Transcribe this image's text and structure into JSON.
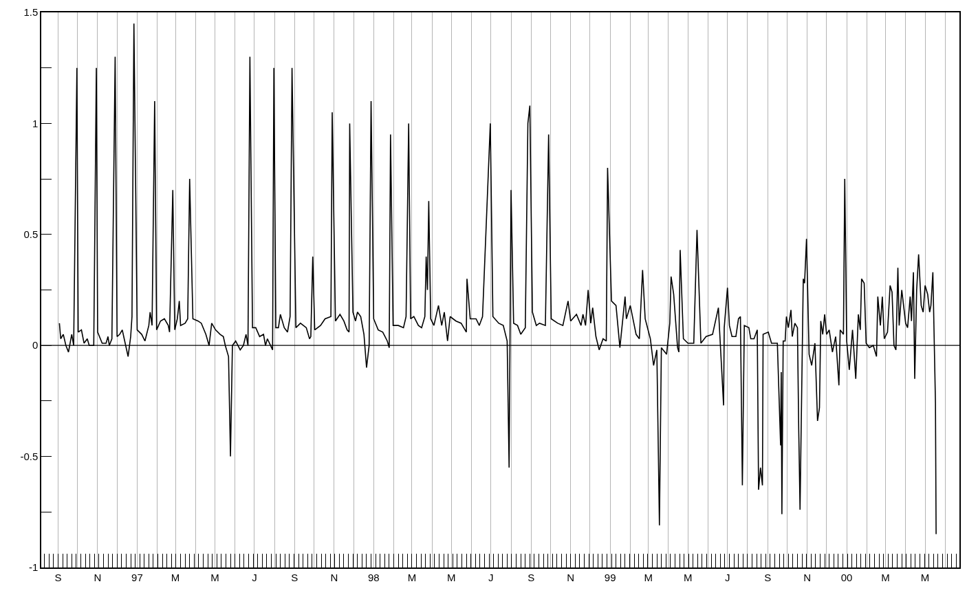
{
  "chart_data": {
    "type": "line",
    "x": [
      "1996-09-03",
      "1996-09-05",
      "1996-09-09",
      "1996-09-13",
      "1996-09-17",
      "1996-09-22",
      "1996-09-25",
      "1996-09-30",
      "1996-10-02",
      "1996-10-07",
      "1996-10-11",
      "1996-10-16",
      "1996-10-19",
      "1996-10-26",
      "1996-10-30",
      "1996-11-01",
      "1996-11-08",
      "1996-11-14",
      "1996-11-17",
      "1996-11-19",
      "1996-11-23",
      "1996-11-28",
      "1996-12-01",
      "1996-12-05",
      "1996-12-09",
      "1996-12-12",
      "1996-12-18",
      "1996-12-22",
      "1996-12-24",
      "1996-12-27",
      "1997-01-01",
      "1997-01-08",
      "1997-01-13",
      "1997-01-19",
      "1997-01-21",
      "1997-01-24",
      "1997-01-28",
      "1997-01-31",
      "1997-02-06",
      "1997-02-12",
      "1997-02-18",
      "1997-02-20",
      "1997-02-25",
      "1997-02-28",
      "1997-03-04",
      "1997-03-07",
      "1997-03-09",
      "1997-03-16",
      "1997-03-20",
      "1997-03-23",
      "1997-03-28",
      "1997-04-05",
      "1997-04-10",
      "1997-04-17",
      "1997-04-22",
      "1997-04-26",
      "1997-05-02",
      "1997-05-09",
      "1997-05-14",
      "1997-05-17",
      "1997-05-22",
      "1997-05-25",
      "1997-05-28",
      "1997-06-02",
      "1997-06-09",
      "1997-06-14",
      "1997-06-18",
      "1997-06-21",
      "1997-06-24",
      "1997-06-28",
      "1997-07-03",
      "1997-07-09",
      "1997-07-15",
      "1997-07-18",
      "1997-07-21",
      "1997-07-29",
      "1997-07-31",
      "1997-08-03",
      "1997-08-07",
      "1997-08-10",
      "1997-08-16",
      "1997-08-21",
      "1997-08-25",
      "1997-08-28",
      "1997-09-03",
      "1997-09-10",
      "1997-09-19",
      "1997-09-24",
      "1997-09-26",
      "1997-09-29",
      "1997-10-02",
      "1997-10-11",
      "1997-10-18",
      "1997-10-27",
      "1997-10-29",
      "1997-11-03",
      "1997-11-10",
      "1997-11-16",
      "1997-11-21",
      "1997-11-24",
      "1997-11-25",
      "1997-11-30",
      "1997-12-04",
      "1997-12-07",
      "1997-12-12",
      "1997-12-17",
      "1997-12-21",
      "1997-12-25",
      "1997-12-28",
      "1998-01-01",
      "1998-01-08",
      "1998-01-15",
      "1998-01-22",
      "1998-01-25",
      "1998-01-27",
      "1998-01-31",
      "1998-02-08",
      "1998-02-16",
      "1998-02-20",
      "1998-02-24",
      "1998-02-27",
      "1998-03-04",
      "1998-03-11",
      "1998-03-16",
      "1998-03-21",
      "1998-03-23",
      "1998-03-25",
      "1998-03-27",
      "1998-03-30",
      "1998-04-04",
      "1998-04-11",
      "1998-04-16",
      "1998-04-20",
      "1998-04-25",
      "1998-04-29",
      "1998-05-08",
      "1998-05-16",
      "1998-05-24",
      "1998-05-25",
      "1998-05-30",
      "1998-06-08",
      "1998-06-13",
      "1998-06-18",
      "1998-06-30",
      "1998-07-04",
      "1998-07-13",
      "1998-07-20",
      "1998-07-26",
      "1998-07-29",
      "1998-08-01",
      "1998-08-05",
      "1998-08-11",
      "1998-08-16",
      "1998-08-23",
      "1998-08-27",
      "1998-08-30",
      "1998-09-03",
      "1998-09-09",
      "1998-09-14",
      "1998-09-23",
      "1998-09-28",
      "1998-10-02",
      "1998-10-12",
      "1998-10-20",
      "1998-10-28",
      "1998-11-01",
      "1998-11-10",
      "1998-11-17",
      "1998-11-20",
      "1998-11-24",
      "1998-11-28",
      "1998-12-02",
      "1998-12-05",
      "1998-12-10",
      "1998-12-15",
      "1998-12-21",
      "1998-12-26",
      "1998-12-28",
      "1999-01-03",
      "1999-01-10",
      "1999-01-16",
      "1999-01-24",
      "1999-01-26",
      "1999-02-01",
      "1999-02-10",
      "1999-02-15",
      "1999-02-20",
      "1999-02-24",
      "1999-03-04",
      "1999-03-09",
      "1999-03-14",
      "1999-03-18",
      "1999-03-21",
      "1999-03-29",
      "1999-04-03",
      "1999-04-05",
      "1999-04-09",
      "1999-04-15",
      "1999-04-17",
      "1999-04-19",
      "1999-04-24",
      "1999-05-01",
      "1999-05-10",
      "1999-05-15",
      "1999-05-21",
      "1999-05-29",
      "1999-06-08",
      "1999-06-17",
      "1999-06-25",
      "1999-06-26",
      "1999-07-01",
      "1999-07-04",
      "1999-07-08",
      "1999-07-14",
      "1999-07-18",
      "1999-07-21",
      "1999-07-24",
      "1999-07-27",
      "1999-08-03",
      "1999-08-06",
      "1999-08-11",
      "1999-08-16",
      "1999-08-18",
      "1999-08-21",
      "1999-08-24",
      "1999-08-25",
      "1999-09-02",
      "1999-09-07",
      "1999-09-16",
      "1999-09-21",
      "1999-09-22",
      "1999-09-23",
      "1999-09-25",
      "1999-09-28",
      "1999-09-30",
      "1999-10-03",
      "1999-10-07",
      "1999-10-09",
      "1999-10-13",
      "1999-10-17",
      "1999-10-19",
      "1999-10-21",
      "1999-10-26",
      "1999-10-28",
      "1999-10-31",
      "1999-11-04",
      "1999-11-08",
      "1999-11-13",
      "1999-11-17",
      "1999-11-20",
      "1999-11-22",
      "1999-11-25",
      "1999-11-28",
      "1999-12-01",
      "1999-12-05",
      "1999-12-10",
      "1999-12-15",
      "1999-12-20",
      "1999-12-22",
      "1999-12-27",
      "1999-12-29",
      "2000-01-01",
      "2000-01-05",
      "2000-01-10",
      "2000-01-15",
      "2000-01-19",
      "2000-01-22",
      "2000-01-24",
      "2000-01-28",
      "2000-01-31",
      "2000-02-05",
      "2000-02-11",
      "2000-02-16",
      "2000-02-18",
      "2000-02-22",
      "2000-02-25",
      "2000-02-28",
      "2000-03-04",
      "2000-03-08",
      "2000-03-11",
      "2000-03-14",
      "2000-03-17",
      "2000-03-20",
      "2000-03-22",
      "2000-03-26",
      "2000-04-01",
      "2000-04-04",
      "2000-04-08",
      "2000-04-10",
      "2000-04-13",
      "2000-04-15",
      "2000-04-18",
      "2000-04-21",
      "2000-04-25",
      "2000-04-28",
      "2000-05-01",
      "2000-05-05",
      "2000-05-08",
      "2000-05-10",
      "2000-05-13",
      "2000-05-17",
      "2000-05-18"
    ],
    "values": [
      0.1,
      0.03,
      0.05,
      0.0,
      -0.03,
      0.05,
      0.0,
      1.25,
      0.06,
      0.07,
      0.01,
      0.03,
      0.0,
      0.0,
      1.25,
      0.06,
      0.01,
      0.01,
      0.04,
      0.0,
      0.03,
      1.3,
      0.04,
      0.05,
      0.07,
      0.03,
      -0.05,
      0.04,
      0.13,
      1.45,
      0.07,
      0.05,
      0.02,
      0.09,
      0.15,
      0.09,
      1.1,
      0.07,
      0.11,
      0.12,
      0.09,
      0.06,
      0.7,
      0.07,
      0.12,
      0.2,
      0.09,
      0.1,
      0.12,
      0.75,
      0.12,
      0.11,
      0.1,
      0.05,
      0.0,
      0.1,
      0.07,
      0.05,
      0.04,
      0.0,
      -0.05,
      -0.5,
      0.0,
      0.02,
      -0.02,
      0.0,
      0.05,
      0.0,
      1.3,
      0.08,
      0.08,
      0.04,
      0.05,
      0.0,
      0.03,
      -0.02,
      1.25,
      0.08,
      0.08,
      0.14,
      0.08,
      0.06,
      0.13,
      1.25,
      0.08,
      0.1,
      0.08,
      0.03,
      0.04,
      0.4,
      0.07,
      0.09,
      0.12,
      0.13,
      1.05,
      0.11,
      0.14,
      0.11,
      0.07,
      0.06,
      1.0,
      0.15,
      0.11,
      0.15,
      0.13,
      0.05,
      -0.1,
      0.0,
      1.1,
      0.12,
      0.07,
      0.06,
      0.02,
      -0.01,
      0.95,
      0.09,
      0.09,
      0.08,
      0.13,
      1.0,
      0.12,
      0.13,
      0.09,
      0.08,
      0.13,
      0.4,
      0.25,
      0.65,
      0.12,
      0.09,
      0.18,
      0.09,
      0.15,
      0.02,
      0.13,
      0.11,
      0.1,
      0.06,
      0.3,
      0.12,
      0.12,
      0.09,
      0.13,
      1.0,
      0.13,
      0.1,
      0.09,
      0.02,
      -0.55,
      0.7,
      0.1,
      0.09,
      0.05,
      0.08,
      1.0,
      1.08,
      0.15,
      0.09,
      0.1,
      0.09,
      0.95,
      0.12,
      0.1,
      0.09,
      0.2,
      0.11,
      0.14,
      0.09,
      0.14,
      0.09,
      0.25,
      0.1,
      0.17,
      0.04,
      -0.02,
      0.03,
      0.02,
      0.8,
      0.2,
      0.18,
      -0.01,
      0.22,
      0.12,
      0.18,
      0.05,
      0.03,
      0.34,
      0.12,
      0.03,
      -0.09,
      -0.02,
      -0.81,
      -0.01,
      -0.04,
      0.1,
      0.31,
      0.23,
      -0.01,
      -0.03,
      0.43,
      0.03,
      0.01,
      0.01,
      0.52,
      0.01,
      0.04,
      0.05,
      0.17,
      -0.27,
      0.08,
      0.26,
      0.09,
      0.04,
      0.04,
      0.12,
      0.13,
      -0.63,
      0.09,
      0.08,
      0.03,
      0.03,
      0.07,
      -0.65,
      -0.55,
      -0.63,
      0.05,
      0.06,
      0.01,
      0.01,
      -0.45,
      -0.12,
      -0.76,
      0.02,
      0.02,
      0.13,
      0.08,
      0.16,
      0.04,
      0.1,
      0.08,
      -0.38,
      -0.74,
      0.3,
      0.28,
      0.48,
      -0.04,
      -0.09,
      0.01,
      -0.34,
      -0.28,
      0.11,
      0.05,
      0.14,
      0.05,
      0.07,
      -0.03,
      0.04,
      -0.18,
      0.07,
      0.05,
      0.75,
      0.02,
      -0.11,
      0.07,
      -0.15,
      0.14,
      0.07,
      0.3,
      0.28,
      0.01,
      -0.01,
      0.0,
      -0.05,
      0.22,
      0.09,
      0.22,
      0.03,
      0.06,
      0.27,
      0.24,
      0.0,
      -0.02,
      0.35,
      0.09,
      0.25,
      0.1,
      0.08,
      0.22,
      0.11,
      0.33,
      -0.15,
      0.25,
      0.41,
      0.18,
      0.15,
      0.27,
      0.23,
      0.15,
      0.18,
      0.33,
      -0.26,
      -0.85
    ],
    "color": "#000000",
    "xlim": [
      "1996-08-06",
      "2000-06-23"
    ],
    "xticks": [
      {
        "value": "1996-09-01",
        "label": "S"
      },
      {
        "value": "1996-10-01",
        "label": null
      },
      {
        "value": "1996-11-01",
        "label": "N"
      },
      {
        "value": "1996-12-01",
        "label": null
      },
      {
        "value": "1997-01-01",
        "label": "97"
      },
      {
        "value": "1997-02-01",
        "label": null
      },
      {
        "value": "1997-03-01",
        "label": "M"
      },
      {
        "value": "1997-04-01",
        "label": null
      },
      {
        "value": "1997-05-01",
        "label": "M"
      },
      {
        "value": "1997-06-01",
        "label": null
      },
      {
        "value": "1997-07-01",
        "label": "J"
      },
      {
        "value": "1997-08-01",
        "label": null
      },
      {
        "value": "1997-09-01",
        "label": "S"
      },
      {
        "value": "1997-10-01",
        "label": null
      },
      {
        "value": "1997-11-01",
        "label": "N"
      },
      {
        "value": "1997-12-01",
        "label": null
      },
      {
        "value": "1998-01-01",
        "label": "98"
      },
      {
        "value": "1998-02-01",
        "label": null
      },
      {
        "value": "1998-03-01",
        "label": "M"
      },
      {
        "value": "1998-04-01",
        "label": null
      },
      {
        "value": "1998-05-01",
        "label": "M"
      },
      {
        "value": "1998-06-01",
        "label": null
      },
      {
        "value": "1998-07-01",
        "label": "J"
      },
      {
        "value": "1998-08-01",
        "label": null
      },
      {
        "value": "1998-09-01",
        "label": "S"
      },
      {
        "value": "1998-10-01",
        "label": null
      },
      {
        "value": "1998-11-01",
        "label": "N"
      },
      {
        "value": "1998-12-01",
        "label": null
      },
      {
        "value": "1999-01-01",
        "label": "99"
      },
      {
        "value": "1999-02-01",
        "label": null
      },
      {
        "value": "1999-03-01",
        "label": "M"
      },
      {
        "value": "1999-04-01",
        "label": null
      },
      {
        "value": "1999-05-01",
        "label": "M"
      },
      {
        "value": "1999-06-01",
        "label": null
      },
      {
        "value": "1999-07-01",
        "label": "J"
      },
      {
        "value": "1999-08-01",
        "label": null
      },
      {
        "value": "1999-09-01",
        "label": "S"
      },
      {
        "value": "1999-10-01",
        "label": null
      },
      {
        "value": "1999-11-01",
        "label": "N"
      },
      {
        "value": "1999-12-01",
        "label": null
      },
      {
        "value": "2000-01-01",
        "label": "00"
      },
      {
        "value": "2000-02-01",
        "label": null
      },
      {
        "value": "2000-03-01",
        "label": "M"
      },
      {
        "value": "2000-04-01",
        "label": null
      },
      {
        "value": "2000-05-01",
        "label": "M"
      },
      {
        "value": "2000-06-01",
        "label": null
      }
    ],
    "ylim": [
      -1,
      1.5
    ],
    "yticks": [
      -1,
      {
        "value": -0.75,
        "label": null
      },
      -0.5,
      {
        "value": -0.25,
        "label": null
      },
      0,
      {
        "value": 0.25,
        "label": null
      },
      0.5,
      {
        "value": 0.75,
        "label": null
      },
      1,
      {
        "value": 1.25,
        "label": null
      },
      1.5
    ],
    "grid": "x",
    "ref_lines": [
      {
        "axis": "y",
        "value": 0,
        "color": "#000000"
      }
    ]
  }
}
